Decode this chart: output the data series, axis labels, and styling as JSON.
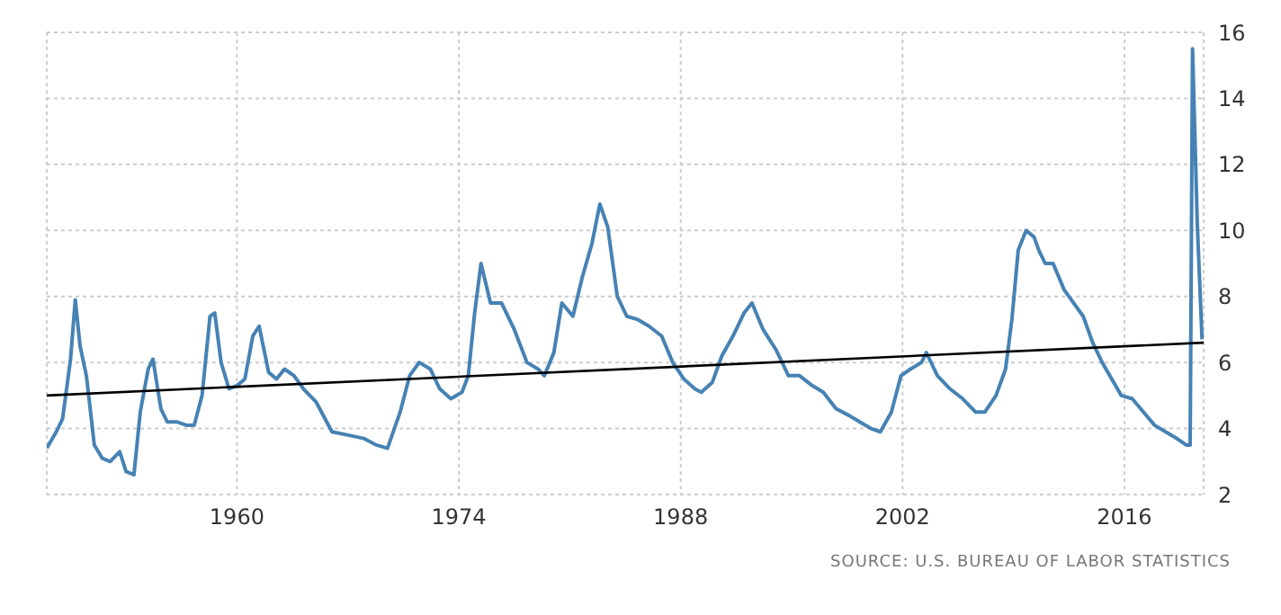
{
  "chart_data": {
    "type": "line",
    "x": [
      1948.0,
      1948.6,
      1949.0,
      1949.5,
      1949.8,
      1950.1,
      1950.5,
      1951.0,
      1951.5,
      1952.0,
      1952.6,
      1953.0,
      1953.5,
      1953.9,
      1954.4,
      1954.7,
      1955.2,
      1955.6,
      1956.2,
      1956.8,
      1957.3,
      1957.8,
      1958.3,
      1958.6,
      1959.0,
      1959.5,
      1960.0,
      1960.5,
      1961.0,
      1961.4,
      1962.0,
      1962.5,
      1963.0,
      1963.6,
      1964.2,
      1965.0,
      1966.0,
      1967.0,
      1968.0,
      1968.8,
      1969.5,
      1970.3,
      1970.9,
      1971.5,
      1972.2,
      1972.8,
      1973.5,
      1974.2,
      1974.6,
      1975.0,
      1975.4,
      1976.0,
      1976.7,
      1977.5,
      1978.3,
      1979.0,
      1979.4,
      1980.0,
      1980.5,
      1981.2,
      1981.8,
      1982.4,
      1982.9,
      1983.4,
      1984.0,
      1984.6,
      1985.3,
      1986.0,
      1986.8,
      1987.5,
      1988.2,
      1988.9,
      1989.3,
      1990.0,
      1990.6,
      1991.3,
      1992.0,
      1992.5,
      1993.2,
      1994.0,
      1994.8,
      1995.5,
      1996.3,
      1997.0,
      1997.8,
      1998.6,
      1999.3,
      2000.0,
      2000.6,
      2001.3,
      2001.9,
      2002.5,
      2003.2,
      2003.5,
      2004.2,
      2005.0,
      2005.8,
      2006.6,
      2007.2,
      2007.9,
      2008.5,
      2008.9,
      2009.3,
      2009.8,
      2010.3,
      2010.6,
      2011.0,
      2011.5,
      2012.2,
      2012.8,
      2013.4,
      2014.0,
      2014.6,
      2015.2,
      2015.8,
      2016.5,
      2017.2,
      2017.9,
      2018.6,
      2019.3,
      2019.9,
      2020.15,
      2020.3,
      2020.6,
      2020.9
    ],
    "values": [
      3.4,
      3.9,
      4.3,
      6.1,
      7.9,
      6.5,
      5.6,
      3.5,
      3.1,
      3.0,
      3.3,
      2.7,
      2.6,
      4.5,
      5.8,
      6.1,
      4.6,
      4.2,
      4.2,
      4.1,
      4.1,
      5.0,
      7.4,
      7.5,
      6.0,
      5.2,
      5.3,
      5.5,
      6.8,
      7.1,
      5.7,
      5.5,
      5.8,
      5.6,
      5.2,
      4.8,
      3.9,
      3.8,
      3.7,
      3.5,
      3.4,
      4.5,
      5.6,
      6.0,
      5.8,
      5.2,
      4.9,
      5.1,
      5.6,
      7.5,
      9.0,
      7.8,
      7.8,
      7.0,
      6.0,
      5.8,
      5.6,
      6.3,
      7.8,
      7.4,
      8.6,
      9.6,
      10.8,
      10.1,
      8.0,
      7.4,
      7.3,
      7.1,
      6.8,
      6.0,
      5.5,
      5.2,
      5.1,
      5.4,
      6.2,
      6.8,
      7.5,
      7.8,
      7.0,
      6.4,
      5.6,
      5.6,
      5.3,
      5.1,
      4.6,
      4.4,
      4.2,
      4.0,
      3.9,
      4.5,
      5.6,
      5.8,
      6.0,
      6.3,
      5.6,
      5.2,
      4.9,
      4.5,
      4.5,
      5.0,
      5.8,
      7.3,
      9.4,
      10.0,
      9.8,
      9.4,
      9.0,
      9.0,
      8.2,
      7.8,
      7.4,
      6.6,
      6.0,
      5.5,
      5.0,
      4.9,
      4.5,
      4.1,
      3.9,
      3.7,
      3.5,
      3.5,
      15.5,
      10.2,
      6.7
    ],
    "color": "#4682b4",
    "series": [
      {
        "name": null,
        "type": "line",
        "x": [
          1948,
          2021
        ],
        "values": [
          5.0,
          6.6
        ],
        "color": "#000000"
      }
    ],
    "xlim": [
      1948,
      2021
    ],
    "xticks": [
      1960,
      1974,
      1988,
      2002,
      2016
    ],
    "ylim": [
      2,
      16
    ],
    "yticks": [
      2,
      4,
      6,
      8,
      10,
      12,
      14,
      16
    ],
    "grid": true,
    "marker": "none",
    "line_style": "solid",
    "annotations": [
      "SOURCE: U.S. BUREAU OF LABOR STATISTICS"
    ]
  }
}
